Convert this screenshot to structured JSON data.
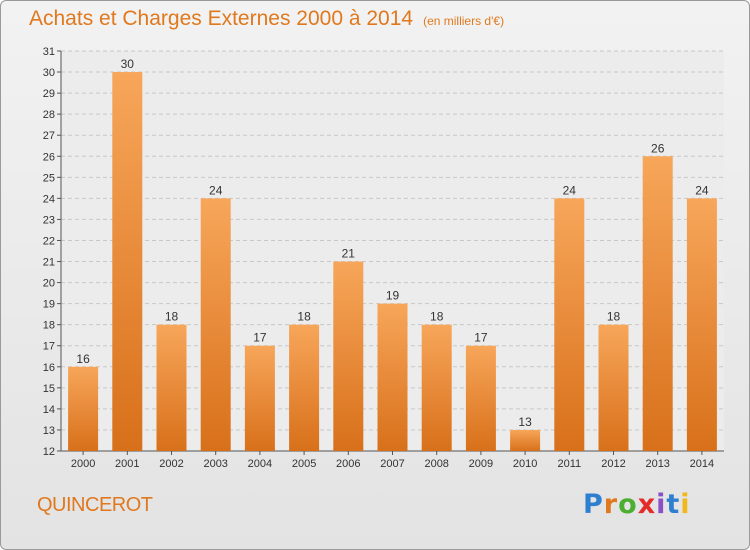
{
  "title": "Achats et Charges Externes 2000 à 2014",
  "subtitle": "(en milliers d'€)",
  "commune": "QUINCEROT",
  "logo": {
    "letters": [
      "P",
      "r",
      "o",
      "x",
      "i",
      "t",
      "i"
    ],
    "colors": [
      "#2e7fd0",
      "#e0791e",
      "#4caf32",
      "#e52a2a",
      "#8b4fc7",
      "#2e7fd0",
      "#f0b81a"
    ]
  },
  "colors": {
    "accent": "#e0791e",
    "bar": "#f08c2a",
    "bar_light": "#f7a65a",
    "bar_dark": "#d8701a"
  },
  "chart_data": {
    "type": "bar",
    "categories": [
      "2000",
      "2001",
      "2002",
      "2003",
      "2004",
      "2005",
      "2006",
      "2007",
      "2008",
      "2009",
      "2010",
      "2011",
      "2012",
      "2013",
      "2014"
    ],
    "values": [
      16,
      30,
      18,
      24,
      17,
      18,
      21,
      19,
      18,
      17,
      13,
      24,
      18,
      26,
      24
    ],
    "ylim": [
      12,
      31
    ],
    "yticks": [
      12,
      13,
      14,
      15,
      16,
      17,
      18,
      19,
      20,
      21,
      22,
      23,
      24,
      25,
      26,
      27,
      28,
      29,
      30,
      31
    ],
    "grid": true
  }
}
